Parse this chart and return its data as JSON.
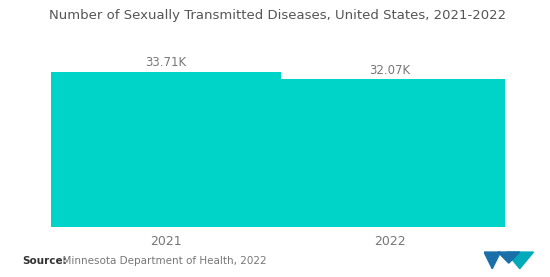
{
  "title": "Number of Sexually Transmitted Diseases, United States, 2021-2022",
  "categories": [
    "2021",
    "2022"
  ],
  "values": [
    33710,
    32070
  ],
  "labels": [
    "33.71K",
    "32.07K"
  ],
  "bar_color": "#00D4C8",
  "background_color": "#ffffff",
  "ylim": [
    0,
    42000
  ],
  "bar_width": 0.72,
  "source_bold": "Source:",
  "source_rest": "  Minnesota Department of Health, 2022",
  "title_fontsize": 9.5,
  "label_fontsize": 8.5,
  "tick_fontsize": 9,
  "source_fontsize": 7.5
}
